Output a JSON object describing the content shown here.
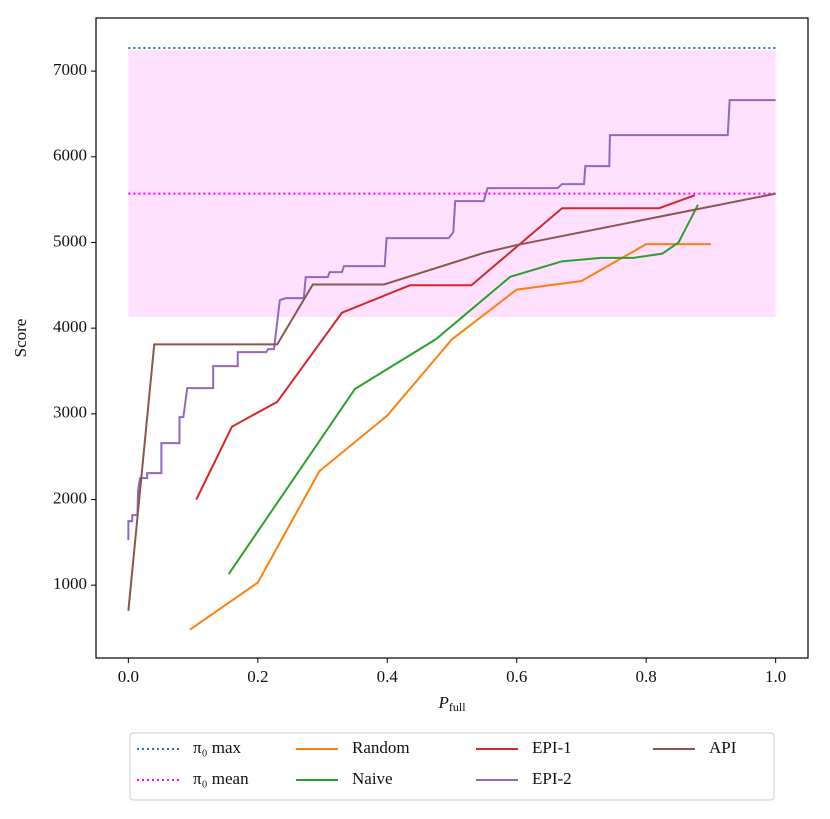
{
  "chart_data": {
    "type": "line",
    "xlabel": "P",
    "xlabel_sub": "full",
    "ylabel": "Score",
    "xlim": [
      -0.05,
      1.05
    ],
    "ylim": [
      150,
      7620
    ],
    "xticks": [
      {
        "value": 0,
        "label": "0.0"
      },
      0.2,
      0.4,
      0.6,
      0.8,
      {
        "value": 1,
        "label": "1.0"
      }
    ],
    "yticks": [
      1000,
      2000,
      3000,
      4000,
      5000,
      6000,
      7000
    ],
    "band": {
      "color": "#ffe0ff",
      "x": [
        0,
        1
      ],
      "low": 4130,
      "high": 7250
    },
    "legend": "below",
    "series": [
      {
        "name": "π₀ max",
        "color": "#1f77b4",
        "style": "dotted",
        "x": [
          0,
          1
        ],
        "values": [
          7270,
          7270
        ]
      },
      {
        "name": "π₀ mean",
        "color": "#ff00ff",
        "style": "dotted",
        "x": [
          0,
          1
        ],
        "values": [
          5570,
          5570
        ]
      },
      {
        "name": "Random",
        "color": "#ff7f0e",
        "style": "solid",
        "x": [
          0.095,
          0.2,
          0.295,
          0.4,
          0.5,
          0.6,
          0.7,
          0.8,
          0.9
        ],
        "values": [
          480,
          1030,
          2330,
          2980,
          3870,
          4450,
          4550,
          4980,
          4980
        ]
      },
      {
        "name": "Naive",
        "color": "#2ca02c",
        "style": "solid",
        "x": [
          0.155,
          0.35,
          0.475,
          0.59,
          0.67,
          0.73,
          0.78,
          0.825,
          0.85,
          0.88
        ],
        "values": [
          1130,
          3290,
          3870,
          4600,
          4780,
          4820,
          4820,
          4870,
          5000,
          5440
        ]
      },
      {
        "name": "EPI-1",
        "color": "#d62728",
        "style": "solid",
        "x": [
          0.105,
          0.16,
          0.23,
          0.33,
          0.435,
          0.53,
          0.67,
          0.82,
          0.875
        ],
        "values": [
          2000,
          2850,
          3140,
          4180,
          4500,
          4500,
          5400,
          5400,
          5550
        ]
      },
      {
        "name": "EPI-2",
        "color": "#9467bd",
        "style": "solid",
        "x": [
          0,
          0,
          0.006,
          0.006,
          0.014,
          0.015,
          0.018,
          0.029,
          0.029,
          0.051,
          0.051,
          0.079,
          0.079,
          0.085,
          0.091,
          0.131,
          0.131,
          0.169,
          0.169,
          0.213,
          0.216,
          0.225,
          0.234,
          0.243,
          0.271,
          0.274,
          0.308,
          0.311,
          0.33,
          0.333,
          0.396,
          0.399,
          0.495,
          0.502,
          0.505,
          0.549,
          0.555,
          0.663,
          0.67,
          0.704,
          0.706,
          0.743,
          0.744,
          0.926,
          0.929,
          1
        ],
        "values": [
          1526,
          1747,
          1747,
          1817,
          1817,
          2109,
          2249,
          2249,
          2308,
          2308,
          2658,
          2658,
          2961,
          2961,
          3300,
          3300,
          3557,
          3557,
          3720,
          3720,
          3755,
          3755,
          4327,
          4350,
          4350,
          4595,
          4595,
          4654,
          4654,
          4724,
          4724,
          5051,
          5051,
          5121,
          5483,
          5483,
          5634,
          5634,
          5681,
          5681,
          5891,
          5891,
          6253,
          6253,
          6661,
          6661
        ]
      },
      {
        "name": "API",
        "color": "#8c564b",
        "style": "solid",
        "x": [
          0,
          0.04,
          0.23,
          0.285,
          0.395,
          0.55,
          0.6,
          1
        ],
        "values": [
          700,
          3810,
          3810,
          4510,
          4510,
          4880,
          4970,
          5570
        ]
      }
    ]
  }
}
